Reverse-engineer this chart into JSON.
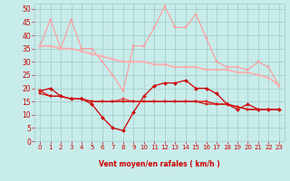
{
  "bg_color": "#c8ecea",
  "grid_color": "#a0c8c8",
  "xlabel": "Vent moyen/en rafales ( km/h )",
  "xlabel_color": "#cc0000",
  "tick_color": "#cc0000",
  "ylim": [
    0,
    52
  ],
  "xlim": [
    -0.5,
    23.5
  ],
  "yticks": [
    0,
    5,
    10,
    15,
    20,
    25,
    30,
    35,
    40,
    45,
    50
  ],
  "xticks": [
    0,
    1,
    2,
    3,
    4,
    5,
    6,
    7,
    8,
    9,
    10,
    11,
    12,
    13,
    14,
    15,
    16,
    17,
    18,
    19,
    20,
    21,
    22,
    23
  ],
  "series": [
    {
      "label": "rafales_high",
      "y": [
        36,
        46,
        35,
        46,
        35,
        35,
        30,
        25,
        19,
        36,
        36,
        43,
        51,
        43,
        43,
        48,
        39,
        30,
        28,
        28,
        27,
        30,
        28,
        21
      ],
      "color": "#ff9999",
      "lw": 0.8,
      "marker": "s",
      "ms": 1.8
    },
    {
      "label": "trend_high",
      "y": [
        36,
        36,
        35,
        35,
        34,
        33,
        32,
        31,
        30,
        30,
        30,
        29,
        29,
        28,
        28,
        28,
        27,
        27,
        27,
        26,
        26,
        25,
        24,
        21
      ],
      "color": "#ffaaaa",
      "lw": 1.2,
      "marker": "s",
      "ms": 1.8
    },
    {
      "label": "vent_low",
      "y": [
        19,
        20,
        17,
        16,
        16,
        14,
        9,
        5,
        4,
        11,
        17,
        21,
        22,
        22,
        23,
        20,
        20,
        18,
        14,
        12,
        14,
        12,
        12,
        12
      ],
      "color": "#cc0000",
      "lw": 0.9,
      "marker": "D",
      "ms": 2.0
    },
    {
      "label": "trend_low1",
      "y": [
        19,
        17,
        17,
        16,
        16,
        15,
        15,
        15,
        16,
        15,
        15,
        15,
        15,
        15,
        15,
        15,
        15,
        14,
        14,
        13,
        12,
        12,
        12,
        12
      ],
      "color": "#ee3333",
      "lw": 0.8,
      "marker": "s",
      "ms": 1.5
    },
    {
      "label": "trend_low2",
      "y": [
        19,
        17,
        17,
        16,
        16,
        15,
        15,
        15,
        15,
        15,
        15,
        15,
        15,
        15,
        15,
        15,
        15,
        14,
        14,
        13,
        12,
        12,
        12,
        12
      ],
      "color": "#dd2222",
      "lw": 0.8,
      "marker": "s",
      "ms": 1.5
    },
    {
      "label": "trend_low3",
      "y": [
        18,
        17,
        17,
        16,
        16,
        15,
        15,
        15,
        15,
        15,
        15,
        15,
        15,
        15,
        15,
        15,
        14,
        14,
        14,
        13,
        12,
        12,
        12,
        12
      ],
      "color": "#cc1111",
      "lw": 0.8,
      "marker": "s",
      "ms": 1.5
    }
  ],
  "wind_dirs": [
    225,
    247,
    247,
    225,
    247,
    247,
    315,
    0,
    67,
    90,
    90,
    90,
    90,
    90,
    90,
    90,
    90,
    90,
    90,
    90,
    90,
    90,
    90,
    90
  ],
  "arrow_color": "#cc0000"
}
